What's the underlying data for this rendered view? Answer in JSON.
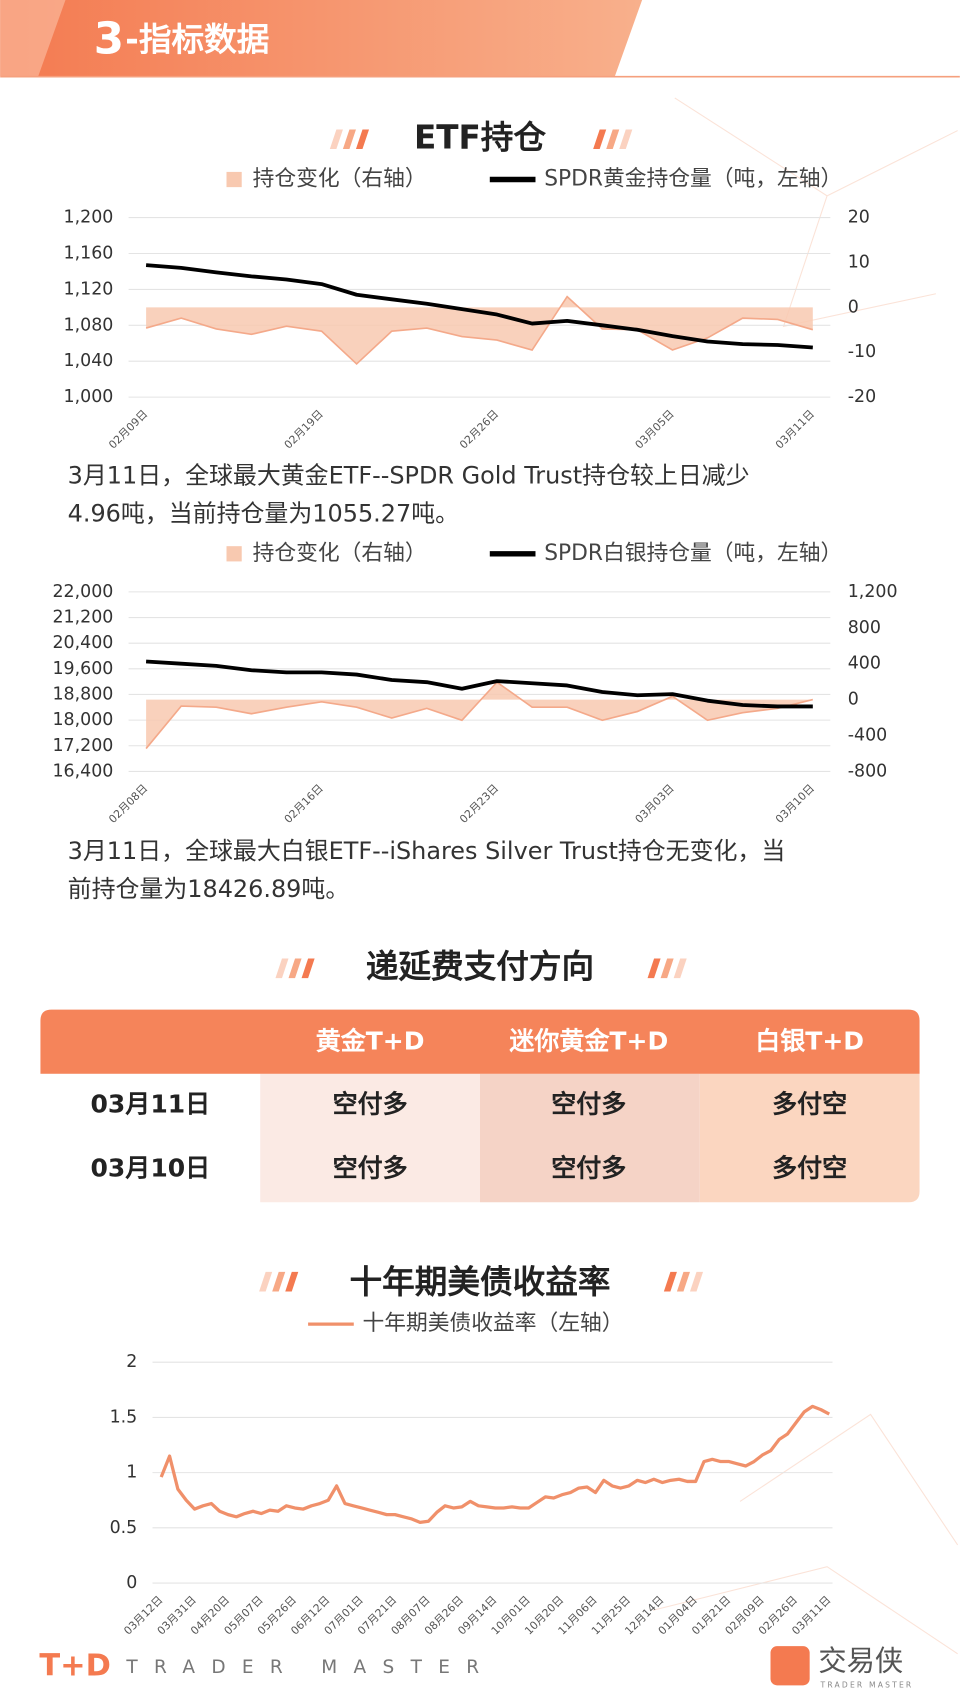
{
  "header": {
    "number": "3",
    "title": "-指标数据"
  },
  "chart_data": [
    {
      "type": "combo",
      "title": "ETF持仓",
      "categories": [
        "02月09日",
        null,
        null,
        null,
        null,
        "02月19日",
        null,
        null,
        null,
        null,
        "02月26日",
        null,
        null,
        null,
        null,
        "03月05日",
        null,
        null,
        null,
        "03月11日"
      ],
      "series": [
        {
          "name": "持仓变化（右轴）",
          "type": "area",
          "axis": "y2",
          "color": "#f8c9b0",
          "values": [
            -4.6,
            -2.4,
            -4.8,
            -6,
            -4.2,
            -5.3,
            -12.6,
            -5.3,
            -4.6,
            -6.5,
            -7.3,
            -9.5,
            2.4,
            -4.8,
            -5,
            -9.5,
            -6.8,
            -2.4,
            -2.7,
            -4.96
          ]
        },
        {
          "name": "SPDR黄金持仓量（吨，左轴）",
          "type": "line",
          "color": "#000000",
          "values": [
            1147,
            1144,
            1139,
            1134.5,
            1131,
            1126,
            1114,
            1109,
            1104,
            1098,
            1092,
            1082,
            1085,
            1080,
            1075,
            1068,
            1062,
            1059,
            1058,
            1055.27
          ]
        }
      ],
      "ylim": [
        1000,
        1200
      ],
      "yticks": [
        {
          "value": 1000,
          "label": "1,000"
        },
        {
          "value": 1040,
          "label": "1,040"
        },
        {
          "value": 1080,
          "label": "1,080"
        },
        {
          "value": 1120,
          "label": "1,120"
        },
        {
          "value": 1160,
          "label": "1,160"
        },
        {
          "value": 1200,
          "label": "1,200"
        }
      ],
      "y2lim": [
        -20,
        20
      ],
      "y2ticks": [
        -20,
        -10,
        0,
        10,
        20
      ],
      "grid": true,
      "caption": [
        "3月11日，全球最大黄金ETF--SPDR Gold Trust持仓较上日减少",
        "4.96吨，当前持仓量为1055.27吨。"
      ]
    },
    {
      "type": "combo",
      "categories": [
        "02月08日",
        null,
        null,
        null,
        null,
        "02月16日",
        null,
        null,
        null,
        null,
        "02月23日",
        null,
        null,
        null,
        null,
        "03月03日",
        null,
        null,
        null,
        "03月10日"
      ],
      "series": [
        {
          "name": "持仓变化（右轴）",
          "type": "area",
          "axis": "y2",
          "color": "#f8c9b0",
          "values": [
            -545,
            -73,
            -85,
            -158,
            -85,
            -24,
            -85,
            -206,
            -97,
            -230,
            194,
            -85,
            -85,
            -230,
            -133,
            36,
            -230,
            -145,
            -97,
            0
          ]
        },
        {
          "name": "SPDR白银持仓量（吨，左轴）",
          "type": "line",
          "color": "#000000",
          "values": [
            19828,
            19760,
            19692,
            19556,
            19488,
            19488,
            19421,
            19251,
            19183,
            18979,
            19217,
            19149,
            19081,
            18878,
            18776,
            18810,
            18606,
            18471,
            18427,
            18426.89
          ]
        }
      ],
      "ylim": [
        16400,
        22000
      ],
      "yticks": [
        {
          "value": 16400,
          "label": "16,400"
        },
        {
          "value": 17200,
          "label": "17,200"
        },
        {
          "value": 18000,
          "label": "18,000"
        },
        {
          "value": 18800,
          "label": "18,800"
        },
        {
          "value": 19600,
          "label": "19,600"
        },
        {
          "value": 20400,
          "label": "20,400"
        },
        {
          "value": 21200,
          "label": "21,200"
        },
        {
          "value": 22000,
          "label": "22,000"
        }
      ],
      "y2lim": [
        -800,
        1200
      ],
      "y2ticks": [
        -800,
        -400,
        0,
        400,
        800,
        {
          "value": 1200,
          "label": "1,200"
        }
      ],
      "grid": true,
      "caption": [
        "3月11日，全球最大白银ETF--iShares Silver Trust持仓无变化，当",
        "前持仓量为18426.89吨。"
      ]
    },
    {
      "type": "line",
      "title": "十年期美债收益率",
      "categories": [
        "03月12日",
        null,
        null,
        null,
        "03月31日",
        null,
        null,
        null,
        "04月20日",
        null,
        null,
        null,
        "05月07日",
        null,
        null,
        null,
        "05月26日",
        null,
        null,
        null,
        "06月12日",
        null,
        null,
        null,
        "07月01日",
        null,
        null,
        null,
        "07月21日",
        null,
        null,
        null,
        "08月07日",
        null,
        null,
        null,
        "08月26日",
        null,
        null,
        null,
        "09月14日",
        null,
        null,
        null,
        "10月01日",
        null,
        null,
        null,
        "10月20日",
        null,
        null,
        null,
        "11月06日",
        null,
        null,
        null,
        "11月25日",
        null,
        null,
        null,
        "12月14日",
        null,
        null,
        null,
        "01月04日",
        null,
        null,
        null,
        "01月21日",
        null,
        null,
        null,
        "02月09日",
        null,
        null,
        null,
        "02月26日",
        null,
        null,
        null,
        "03月11日"
      ],
      "series": [
        {
          "name": "十年期美债收益率（左轴）",
          "color": "#f0906a",
          "values": [
            0.96,
            1.15,
            0.85,
            0.75,
            0.67,
            0.7,
            0.72,
            0.65,
            0.62,
            0.6,
            0.63,
            0.65,
            0.63,
            0.66,
            0.65,
            0.7,
            0.68,
            0.67,
            0.7,
            0.72,
            0.75,
            0.88,
            0.72,
            0.7,
            0.68,
            0.66,
            0.64,
            0.62,
            0.62,
            0.6,
            0.58,
            0.55,
            0.56,
            0.64,
            0.7,
            0.68,
            0.69,
            0.74,
            0.7,
            0.69,
            0.68,
            0.68,
            0.69,
            0.68,
            0.68,
            0.73,
            0.78,
            0.77,
            0.8,
            0.82,
            0.86,
            0.87,
            0.82,
            0.93,
            0.88,
            0.86,
            0.88,
            0.93,
            0.91,
            0.94,
            0.91,
            0.93,
            0.94,
            0.92,
            0.92,
            1.1,
            1.12,
            1.1,
            1.1,
            1.08,
            1.06,
            1.1,
            1.16,
            1.2,
            1.3,
            1.35,
            1.45,
            1.55,
            1.6,
            1.57,
            1.53
          ]
        }
      ],
      "ylim": [
        0,
        2
      ],
      "yticks": [
        0,
        0.5,
        1,
        1.5,
        2
      ],
      "grid": true
    }
  ],
  "table": {
    "title": "递延费支付方向",
    "columns": [
      "黄金T+D",
      "迷你黄金T+D",
      "白银T+D"
    ],
    "rows": [
      {
        "date": "03月11日",
        "cells": [
          "空付多",
          "空付多",
          "多付空"
        ]
      },
      {
        "date": "03月10日",
        "cells": [
          "空付多",
          "空付多",
          "多付空"
        ]
      }
    ]
  },
  "footer": {
    "brand": "T+D",
    "slogan": "TRADER MASTER",
    "logo": "交易侠",
    "logo_sub": "TRADER MASTER"
  }
}
